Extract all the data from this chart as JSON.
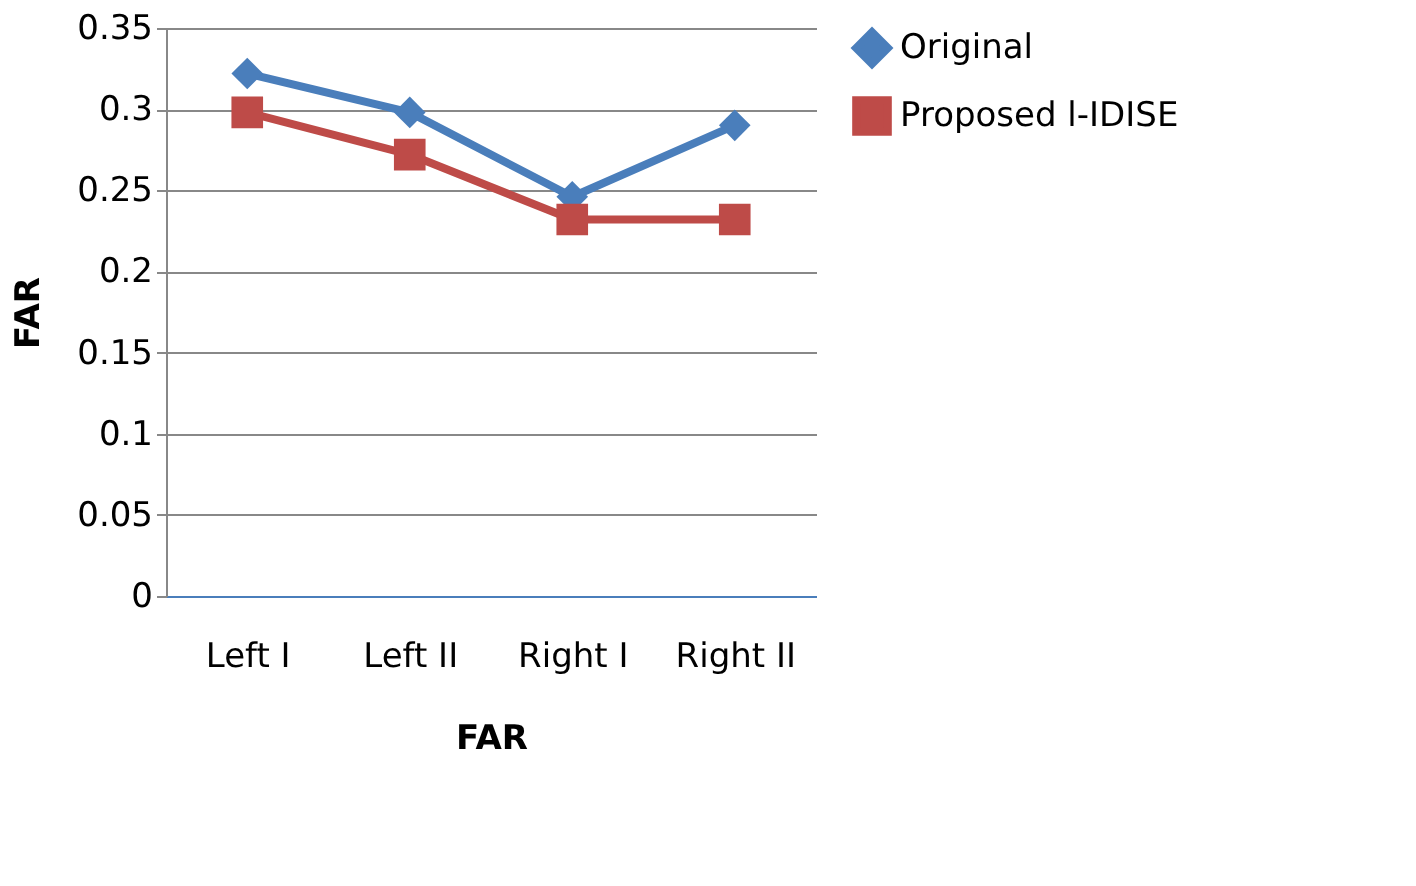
{
  "chart_data": {
    "type": "line",
    "xlabel": "FAR",
    "ylabel": "FAR",
    "categories": [
      "Left I",
      "Left II",
      "Right I",
      "Right II"
    ],
    "series": [
      {
        "name": "Original",
        "color": "#4a7ebb",
        "marker": "diamond",
        "values": [
          0.322,
          0.298,
          0.246,
          0.29
        ]
      },
      {
        "name": "Proposed  l-IDISE",
        "color": "#be4b48",
        "marker": "square",
        "values": [
          0.298,
          0.272,
          0.232,
          0.232
        ]
      }
    ],
    "ylim": [
      0,
      0.35
    ],
    "yticks": [
      0,
      0.05,
      0.1,
      0.15,
      0.2,
      0.25,
      0.3,
      0.35
    ],
    "grid": "y",
    "legend": "right",
    "line_style": "solid"
  }
}
